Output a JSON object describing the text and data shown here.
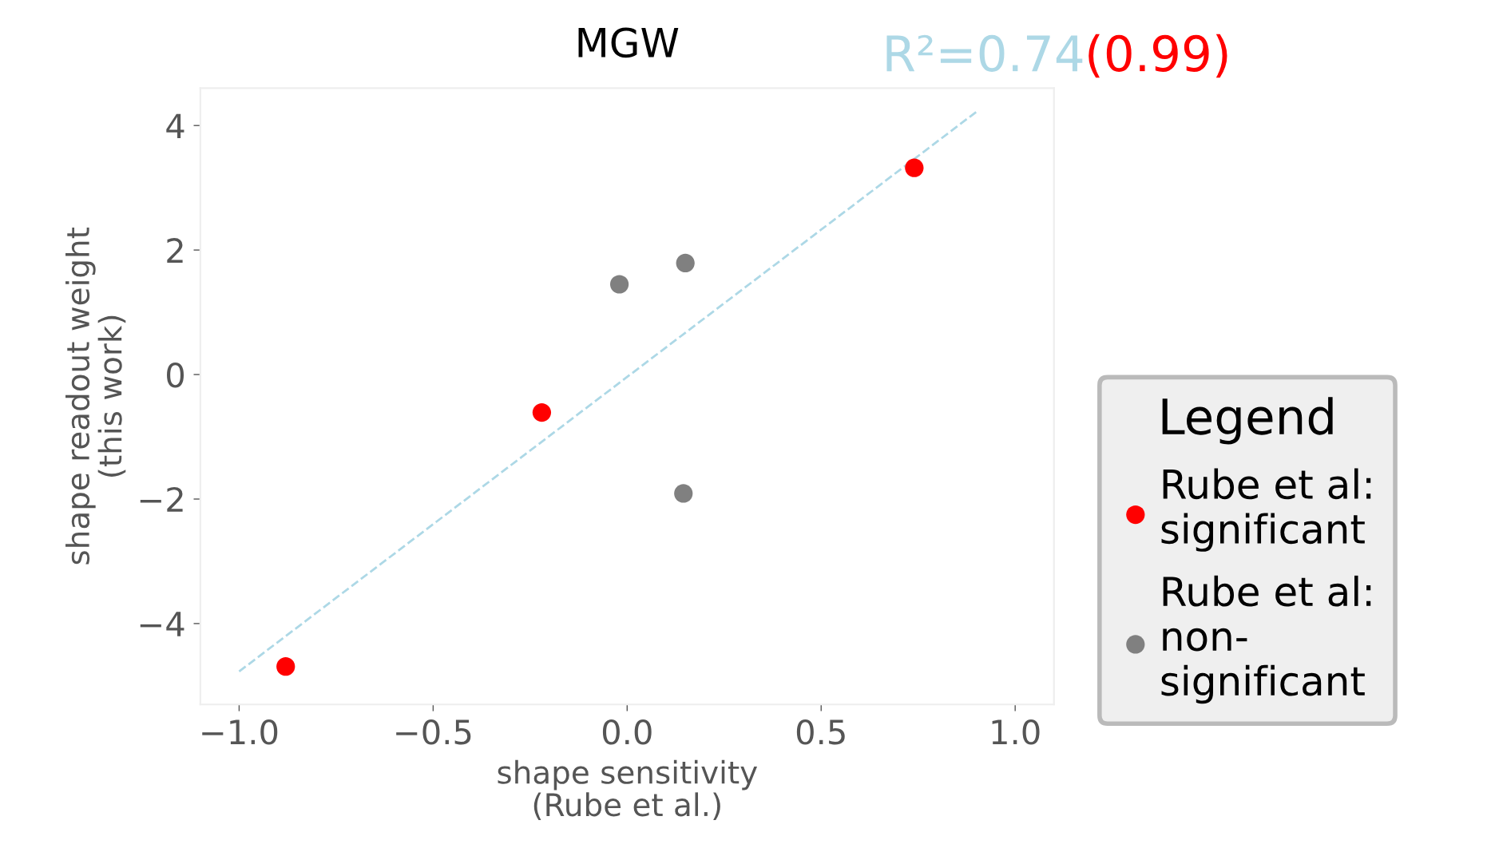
{
  "chart_data": {
    "type": "scatter",
    "title": "MGW",
    "xlabel": "shape sensitivity\n(Rube et al.)",
    "ylabel": "shape readout weight\n(this work)",
    "legend_title": "Legend",
    "series": [
      {
        "name": "Rube et al:\nsignificant",
        "color": "#ff0000",
        "marker": "circle",
        "x": [
          -0.88,
          -0.22,
          0.74
        ],
        "values": [
          -4.69,
          -0.61,
          3.32
        ]
      },
      {
        "name": "Rube et al:\nnon-\nsignificant",
        "color": "#808080",
        "marker": "circle",
        "x": [
          -0.02,
          0.15,
          0.145
        ],
        "values": [
          1.45,
          1.79,
          -1.91
        ]
      },
      {
        "type": "line",
        "color": "#add8e6",
        "line_style": "dashed",
        "marker": "none",
        "x": [
          -1.0,
          0.9
        ],
        "values": [
          -4.77,
          4.22
        ]
      }
    ],
    "annotations": [
      "R²=0.74",
      "(0.99)"
    ],
    "xlim": [
      -1.1,
      1.1
    ],
    "ylim": [
      -5.3,
      4.6
    ],
    "xticks": [
      {
        "value": -1,
        "label": "−1.0"
      },
      -0.5,
      {
        "value": 0,
        "label": "0.0"
      },
      0.5,
      {
        "value": 1,
        "label": "1.0"
      }
    ],
    "yticks": [
      -4,
      -2,
      0,
      2,
      4
    ],
    "grid": false,
    "legend": "right"
  }
}
